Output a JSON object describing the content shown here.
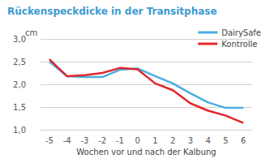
{
  "chart_data": {
    "type": "line",
    "title": "Rückenspeckdicke in der Transitphase",
    "x_label": "Wochen vor und nach der Kalbung",
    "y_label": "cm",
    "categories": [
      "-5",
      "-4",
      "-3",
      "-2",
      "-1",
      "0",
      "1",
      "2",
      "3",
      "4",
      "5",
      "6"
    ],
    "series": [
      {
        "name": "DairySafe",
        "color": "#4aaee0",
        "values": [
          2.5,
          2.18,
          2.16,
          2.16,
          2.32,
          2.35,
          2.18,
          2.02,
          1.8,
          1.6,
          1.48,
          1.48
        ]
      },
      {
        "name": "Kontrolle",
        "color": "#e3262b",
        "values": [
          2.55,
          2.18,
          2.2,
          2.25,
          2.36,
          2.33,
          2.02,
          1.87,
          1.58,
          1.42,
          1.31,
          1.15
        ]
      }
    ],
    "ylim": [
      1,
      3
    ],
    "yticks": [
      {
        "value": 1,
        "label": "1,0"
      },
      {
        "value": 1.5,
        "label": "1,5"
      },
      {
        "value": 2,
        "label": "2,0"
      },
      {
        "value": 2.5,
        "label": "2,5"
      },
      {
        "value": 3,
        "label": "3,0"
      }
    ],
    "grid": true,
    "legend": "upper right"
  }
}
